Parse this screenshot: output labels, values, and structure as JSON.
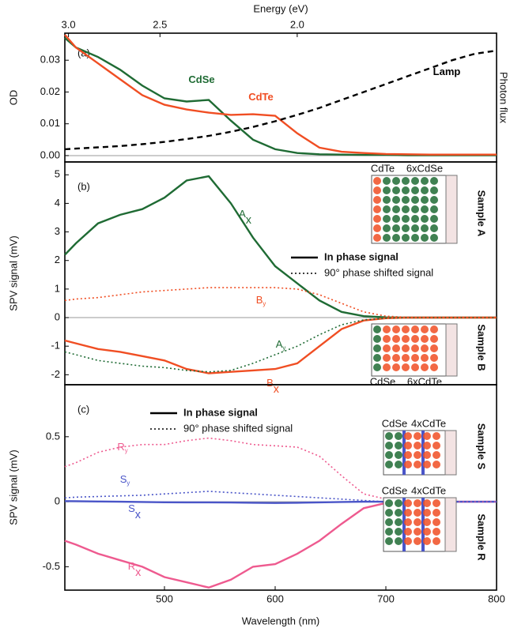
{
  "chart_data": [
    {
      "type": "line",
      "panel_label": "(a)",
      "x2label": "Energy (eV)",
      "x2ticks": [
        {
          "value": 3,
          "label": "3.0"
        },
        {
          "value": 2.5,
          "label": "2.5"
        },
        {
          "value": 2,
          "label": "2.0"
        }
      ],
      "ylabel": "OD",
      "y2label": "Photon flux",
      "xlim": [
        410,
        800
      ],
      "ylim": [
        -0.002,
        0.0385
      ],
      "yticks": [
        {
          "value": 0,
          "label": "0.00"
        },
        0.01,
        0.02,
        0.03
      ],
      "zero_line": true,
      "x": [
        410,
        420,
        440,
        460,
        480,
        500,
        520,
        540,
        560,
        580,
        600,
        620,
        640,
        660,
        680,
        700,
        720,
        740,
        760,
        780,
        800
      ],
      "series": [
        {
          "name": "CdSe",
          "color": "#1f6b34",
          "style": "solid",
          "values": [
            0.037,
            0.034,
            0.031,
            0.027,
            0.022,
            0.018,
            0.017,
            0.0175,
            0.011,
            0.005,
            0.002,
            0.0008,
            0.0004,
            0.0003,
            0.0002,
            0.0002,
            0.0001,
            0.0001,
            0.0001,
            0.0001,
            0.0001
          ]
        },
        {
          "name": "CdTe",
          "color": "#f04e23",
          "style": "solid",
          "values": [
            0.038,
            0.034,
            0.029,
            0.024,
            0.019,
            0.016,
            0.0145,
            0.0135,
            0.0128,
            0.013,
            0.0125,
            0.007,
            0.0025,
            0.0012,
            0.0008,
            0.0005,
            0.0004,
            0.0003,
            0.0003,
            0.0003,
            0.0003
          ]
        },
        {
          "name": "Lamp",
          "color": "#000000",
          "style": "dashed",
          "values": [
            0.002,
            0.0022,
            0.0026,
            0.003,
            0.0036,
            0.0043,
            0.0052,
            0.0062,
            0.0075,
            0.009,
            0.0108,
            0.0128,
            0.015,
            0.0175,
            0.02,
            0.0225,
            0.025,
            0.0275,
            0.03,
            0.032,
            0.033
          ]
        }
      ]
    },
    {
      "type": "line",
      "panel_label": "(b)",
      "ylabel": "SPV signal (mV)",
      "xlim": [
        410,
        800
      ],
      "ylim": [
        -2.35,
        5.45
      ],
      "yticks": [
        -2,
        -1,
        0,
        1,
        2,
        3,
        4,
        5
      ],
      "zero_line": true,
      "legend": [
        "In phase signal",
        "90° phase shifted signal"
      ],
      "x": [
        410,
        420,
        440,
        460,
        480,
        500,
        520,
        540,
        560,
        580,
        600,
        620,
        640,
        660,
        680,
        700,
        720,
        740,
        760,
        780,
        800
      ],
      "series": [
        {
          "name": "A",
          "subscript": "x",
          "color": "#1f6b34",
          "style": "solid",
          "values": [
            2.2,
            2.6,
            3.3,
            3.6,
            3.8,
            4.2,
            4.8,
            4.95,
            4.0,
            2.8,
            1.8,
            1.2,
            0.6,
            0.2,
            0.05,
            0.01,
            0,
            0,
            0,
            0,
            0
          ]
        },
        {
          "name": "B",
          "subscript": "x",
          "color": "#f04e23",
          "style": "solid",
          "values": [
            -0.8,
            -0.9,
            -1.1,
            -1.2,
            -1.35,
            -1.5,
            -1.8,
            -1.95,
            -1.9,
            -1.85,
            -1.8,
            -1.6,
            -1.0,
            -0.4,
            -0.1,
            -0.02,
            0,
            0,
            0,
            0,
            0
          ]
        },
        {
          "name": "A",
          "subscript": "y",
          "color": "#1f6b34",
          "style": "dotted",
          "values": [
            -1.2,
            -1.3,
            -1.5,
            -1.6,
            -1.7,
            -1.75,
            -1.85,
            -1.9,
            -1.85,
            -1.6,
            -1.3,
            -1.0,
            -0.6,
            -0.25,
            -0.08,
            -0.02,
            0,
            0,
            0,
            0,
            0
          ]
        },
        {
          "name": "B",
          "subscript": "y",
          "color": "#f04e23",
          "style": "dotted",
          "values": [
            0.6,
            0.65,
            0.7,
            0.8,
            0.9,
            0.95,
            1.0,
            1.05,
            1.05,
            1.05,
            1.05,
            1.0,
            0.8,
            0.5,
            0.2,
            0.05,
            0.01,
            0,
            0,
            0,
            0
          ]
        }
      ],
      "insets": [
        {
          "labels": [
            "CdTe",
            "6xCdSe"
          ],
          "label_colors": [
            "#f04e23",
            "#1f6b34"
          ],
          "sample": "Sample A",
          "sample_color": "#1f6b34"
        },
        {
          "labels": [
            "CdSe",
            "6xCdTe"
          ],
          "label_colors": [
            "#1f6b34",
            "#f04e23"
          ],
          "sample": "Sample B",
          "sample_color": "#f04e23"
        }
      ]
    },
    {
      "type": "line",
      "panel_label": "(c)",
      "ylabel": "SPV signal (mV)",
      "xlabel": "Wavelength (nm)",
      "xlim": [
        410,
        800
      ],
      "xticks": [
        500,
        600,
        700,
        800
      ],
      "ylim": [
        -0.68,
        0.9
      ],
      "yticks": [
        -0.5,
        0,
        0.5
      ],
      "zero_line": true,
      "legend": [
        "In phase signal",
        "90° phase shifted signal"
      ],
      "x": [
        410,
        420,
        440,
        460,
        480,
        500,
        520,
        540,
        560,
        580,
        600,
        620,
        640,
        660,
        680,
        700,
        720,
        740,
        760,
        780,
        800
      ],
      "series": [
        {
          "name": "R",
          "subscript": "x",
          "color": "#ee5a8f",
          "style": "solid",
          "values": [
            -0.3,
            -0.33,
            -0.4,
            -0.45,
            -0.5,
            -0.58,
            -0.62,
            -0.66,
            -0.6,
            -0.5,
            -0.48,
            -0.4,
            -0.3,
            -0.17,
            -0.05,
            -0.01,
            0,
            0,
            0,
            0,
            0
          ]
        },
        {
          "name": "S",
          "subscript": "x",
          "color": "#4a55c8",
          "style": "solid",
          "values": [
            0.005,
            0.004,
            0.002,
            0,
            -0.002,
            -0.004,
            -0.005,
            -0.005,
            -0.006,
            -0.008,
            -0.01,
            -0.008,
            -0.005,
            -0.002,
            0,
            0,
            0,
            0,
            0,
            0,
            0
          ]
        },
        {
          "name": "R",
          "subscript": "y",
          "color": "#ee5a8f",
          "style": "dotted",
          "values": [
            0.27,
            0.3,
            0.38,
            0.42,
            0.44,
            0.44,
            0.47,
            0.49,
            0.47,
            0.44,
            0.43,
            0.42,
            0.35,
            0.2,
            0.06,
            0.02,
            0.01,
            0,
            0,
            0,
            0
          ]
        },
        {
          "name": "S",
          "subscript": "y",
          "color": "#4a55c8",
          "style": "dotted",
          "values": [
            0.03,
            0.035,
            0.04,
            0.045,
            0.05,
            0.06,
            0.07,
            0.08,
            0.07,
            0.06,
            0.05,
            0.04,
            0.03,
            0.02,
            0.01,
            0,
            0,
            0,
            0,
            0,
            0
          ]
        }
      ],
      "insets": [
        {
          "labels": [
            "CdSe",
            "4xCdTe"
          ],
          "label_colors": [
            "#1f6b34",
            "#f04e23"
          ],
          "sample": "Sample S",
          "sample_color": "#4a55c8"
        },
        {
          "labels": [
            "CdSe",
            "4xCdTe"
          ],
          "label_colors": [
            "#1f6b34",
            "#f04e23"
          ],
          "sample": "Sample R",
          "sample_color": "#ee5a8f"
        }
      ]
    }
  ]
}
